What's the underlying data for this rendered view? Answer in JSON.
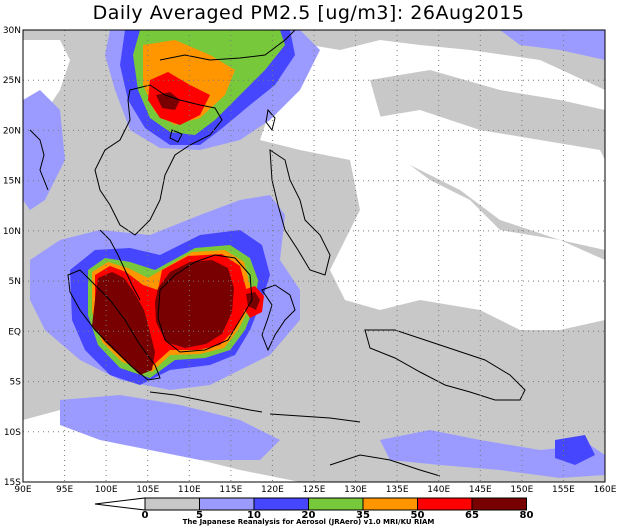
{
  "title": "Daily Averaged PM2.5 [ug/m3]: 26Aug2015",
  "credit": "The Japanese Reanalysis for Aerosol (JRAero) v1.0 MRI/KU RIAM",
  "map": {
    "lon_range": [
      90,
      160
    ],
    "lat_range": [
      -15,
      30
    ],
    "lon_ticks": [
      "90E",
      "95E",
      "100E",
      "105E",
      "110E",
      "115E",
      "120E",
      "125E",
      "130E",
      "135E",
      "140E",
      "145E",
      "150E",
      "155E",
      "160E"
    ],
    "lat_ticks": [
      "30N",
      "25N",
      "20N",
      "15N",
      "10N",
      "5N",
      "EQ",
      "5S",
      "10S",
      "15S"
    ],
    "grid": "dotted"
  },
  "colorbar": {
    "levels": [
      "0",
      "5",
      "10",
      "20",
      "35",
      "50",
      "65",
      "80"
    ],
    "colors": [
      "#ffffff",
      "#c8c8c8",
      "#9b9bff",
      "#4646ff",
      "#78c83c",
      "#ff9600",
      "#ff0000",
      "#780000"
    ]
  }
}
